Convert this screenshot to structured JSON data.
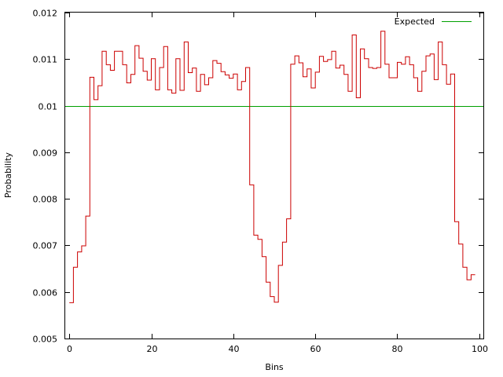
{
  "chart_data": {
    "type": "line",
    "style": "step",
    "xlabel": "Bins",
    "ylabel": "Probability",
    "xlim": [
      -1,
      101
    ],
    "ylim": [
      0.005,
      0.012
    ],
    "x_ticks": [
      0,
      20,
      40,
      60,
      80,
      100
    ],
    "x_tick_labels": [
      "0",
      "20",
      "40",
      "60",
      "80",
      "100"
    ],
    "y_ticks": [
      0.005,
      0.006,
      0.007,
      0.008,
      0.009,
      0.01,
      0.011,
      0.012
    ],
    "y_tick_labels": [
      "0.005",
      "0.006",
      "0.007",
      "0.008",
      "0.009",
      "0.01",
      "0.011",
      "0.012"
    ],
    "grid": false,
    "legend": {
      "position": "top-right",
      "entries": [
        {
          "label": "Expected",
          "color": "#00a000"
        }
      ]
    },
    "expected": {
      "name": "Expected",
      "value": 0.01,
      "color": "#00a000"
    },
    "series": [
      {
        "color": "#cc0000",
        "x": [
          0,
          1,
          2,
          3,
          4,
          5,
          6,
          7,
          8,
          9,
          10,
          11,
          12,
          13,
          14,
          15,
          16,
          17,
          18,
          19,
          20,
          21,
          22,
          23,
          24,
          25,
          26,
          27,
          28,
          29,
          30,
          31,
          32,
          33,
          34,
          35,
          36,
          37,
          38,
          39,
          40,
          41,
          42,
          43,
          44,
          45,
          46,
          47,
          48,
          49,
          50,
          51,
          52,
          53,
          54,
          55,
          56,
          57,
          58,
          59,
          60,
          61,
          62,
          63,
          64,
          65,
          66,
          67,
          68,
          69,
          70,
          71,
          72,
          73,
          74,
          75,
          76,
          77,
          78,
          79,
          80,
          81,
          82,
          83,
          84,
          85,
          86,
          87,
          88,
          89,
          90,
          91,
          92,
          93,
          94,
          95,
          96,
          97,
          98
        ],
        "values": [
          0.00577,
          0.00653,
          0.00686,
          0.00699,
          0.00763,
          0.01061,
          0.01013,
          0.01043,
          0.01117,
          0.01088,
          0.01076,
          0.01117,
          0.01117,
          0.01088,
          0.01049,
          0.01067,
          0.01129,
          0.01102,
          0.01074,
          0.01055,
          0.01101,
          0.01034,
          0.01082,
          0.01127,
          0.01034,
          0.01027,
          0.01101,
          0.01033,
          0.01137,
          0.01071,
          0.01081,
          0.01031,
          0.01067,
          0.01045,
          0.0106,
          0.01097,
          0.01091,
          0.01073,
          0.01066,
          0.01059,
          0.01068,
          0.01034,
          0.01052,
          0.01082,
          0.0083,
          0.00722,
          0.00713,
          0.00676,
          0.00621,
          0.0059,
          0.00578,
          0.00657,
          0.00707,
          0.00757,
          0.01089,
          0.01107,
          0.01092,
          0.01062,
          0.01079,
          0.01038,
          0.01072,
          0.01106,
          0.01095,
          0.01099,
          0.01117,
          0.01081,
          0.01087,
          0.01067,
          0.01031,
          0.01152,
          0.01017,
          0.01122,
          0.01101,
          0.01082,
          0.0108,
          0.01082,
          0.0116,
          0.01089,
          0.0106,
          0.0106,
          0.01093,
          0.01089,
          0.01105,
          0.01088,
          0.0106,
          0.01031,
          0.01074,
          0.01107,
          0.01111,
          0.01056,
          0.01137,
          0.01088,
          0.01046,
          0.01068,
          0.00751,
          0.00703,
          0.00653,
          0.00626,
          0.00637
        ]
      }
    ]
  }
}
